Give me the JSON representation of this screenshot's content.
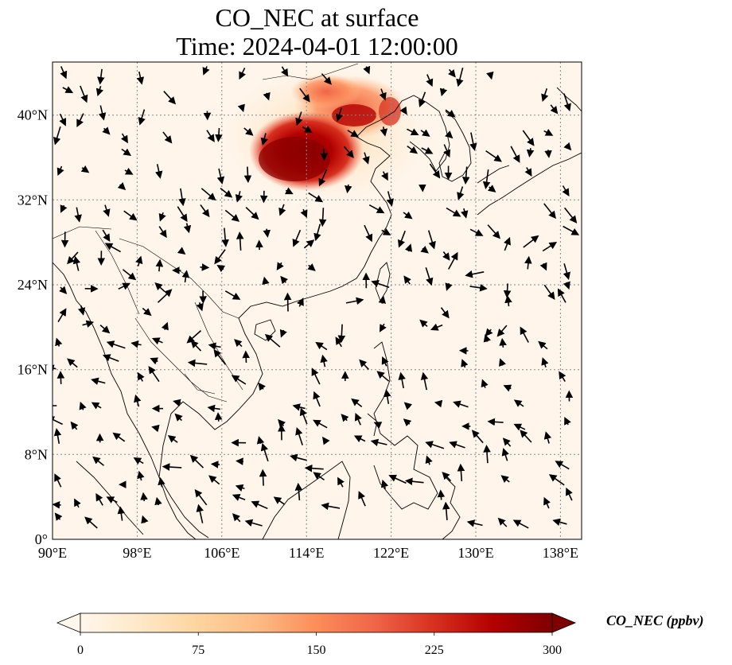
{
  "title": {
    "line1": "CO_NEC at surface",
    "line2": "Time: 2024-04-01 12:00:00"
  },
  "map": {
    "projection": "PlateCarree",
    "lon_range": [
      90,
      140
    ],
    "lat_range": [
      0,
      45
    ],
    "x_ticks": [
      {
        "lon": 90,
        "label": "90°E"
      },
      {
        "lon": 98,
        "label": "98°E"
      },
      {
        "lon": 106,
        "label": "106°E"
      },
      {
        "lon": 114,
        "label": "114°E"
      },
      {
        "lon": 122,
        "label": "122°E"
      },
      {
        "lon": 130,
        "label": "130°E"
      },
      {
        "lon": 138,
        "label": "138°E"
      }
    ],
    "y_ticks": [
      {
        "lat": 0,
        "label": "0°"
      },
      {
        "lat": 8,
        "label": "8°N"
      },
      {
        "lat": 16,
        "label": "16°N"
      },
      {
        "lat": 24,
        "label": "24°N"
      },
      {
        "lat": 32,
        "label": "32°N"
      },
      {
        "lat": 40,
        "label": "40°N"
      }
    ],
    "gridlines": "dotted",
    "background_color": "#fff5eb",
    "coastline_color": "#000000",
    "wind_vectors": "black quiver arrows"
  },
  "chart_data": {
    "type": "heatmap",
    "variable": "CO_NEC",
    "level": "surface",
    "units": "ppbv",
    "colormap": "OrRd",
    "vmin": 0,
    "vmax": 300,
    "extend": "both",
    "hotspots": [
      {
        "region": "North China Plain",
        "lon_range": [
          110,
          118
        ],
        "lat_range": [
          34,
          39
        ],
        "value_ppbv": 290
      },
      {
        "region": "Beijing–Bohai",
        "lon_range": [
          115,
          122
        ],
        "lat_range": [
          38,
          42
        ],
        "value_ppbv": 180
      },
      {
        "region": "Inner Mongolia plume",
        "lon_range": [
          111,
          119
        ],
        "lat_range": [
          40,
          43
        ],
        "value_ppbv": 110
      }
    ]
  },
  "colorbar": {
    "label": "CO_NEC (ppbv)",
    "ticks": [
      "0",
      "75",
      "150",
      "225",
      "300"
    ],
    "tick_values": [
      0,
      75,
      150,
      225,
      300
    ],
    "colors": [
      "#fff7ec",
      "#fee8c8",
      "#fdd49e",
      "#fdbb84",
      "#fc8d59",
      "#ef6548",
      "#d7301f",
      "#b30000",
      "#7f0000"
    ]
  }
}
